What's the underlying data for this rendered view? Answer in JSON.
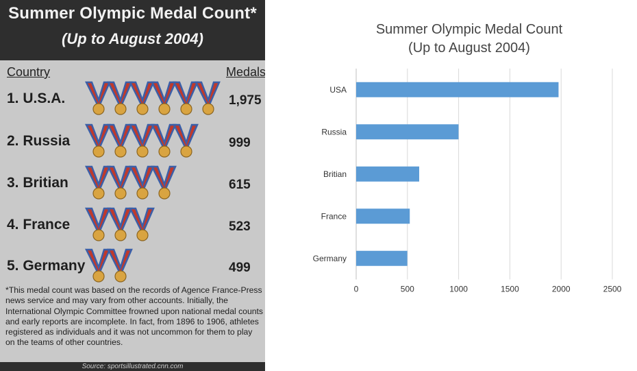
{
  "clipping": {
    "title": "Summer Olympic Medal Count*",
    "subtitle": "(Up to August 2004)",
    "col_country": "Country",
    "col_medals": "Medals",
    "rows": [
      {
        "rank_name": "1. U.S.A.",
        "medals": "1,975",
        "icons": 6
      },
      {
        "rank_name": "2. Russia",
        "medals": "999",
        "icons": 5
      },
      {
        "rank_name": "3. Britian",
        "medals": "615",
        "icons": 4
      },
      {
        "rank_name": "4. France",
        "medals": "523",
        "icons": 3
      },
      {
        "rank_name": "5. Germany",
        "medals": "499",
        "icons": 2
      }
    ],
    "footnote": "*This medal count was based on the records of Agence France-Press news service and may vary from other accounts. Initially, the International Olympic Committee frowned upon national medal counts and early reports are incomplete. In fact, from 1896 to 1906, athletes registered as individuals and it was not uncommon for them to play on the teams of other countries.",
    "source": "Source: sportsillustrated.cnn.com"
  },
  "chart_data": {
    "type": "bar",
    "orientation": "horizontal",
    "title": "Summer Olympic Medal Count",
    "subtitle": "(Up to August 2004)",
    "categories": [
      "USA",
      "Russia",
      "Britian",
      "France",
      "Germany"
    ],
    "values": [
      1975,
      999,
      615,
      523,
      499
    ],
    "xlim": [
      0,
      2500
    ],
    "xticks": [
      "0",
      "500",
      "1000",
      "1500",
      "2000",
      "2500"
    ],
    "grid": "vertical",
    "legend": "none",
    "bar_color": "#5b9bd5"
  },
  "colors": {
    "ribbon_red": "#c0392b",
    "ribbon_blue": "#3b5fa8",
    "medal_gold": "#d9a441"
  }
}
